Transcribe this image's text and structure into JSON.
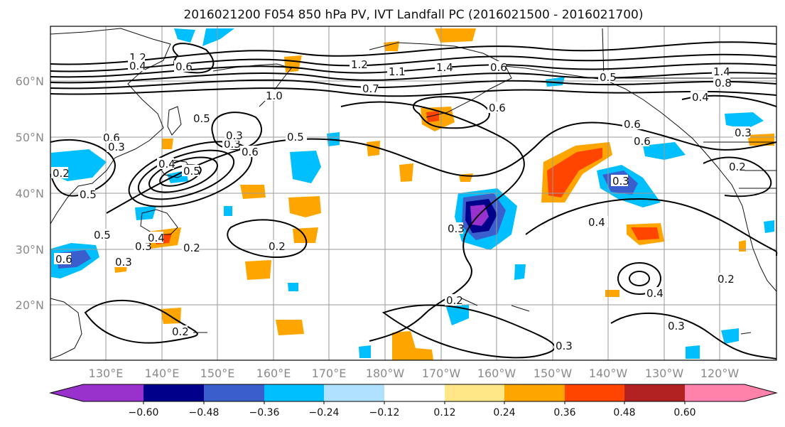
{
  "title": "2016021200 F054 850 hPa PV, IVT Landfall PC (2016021500 - 2016021700)",
  "map": {
    "lat_labels": [
      "60°N",
      "50°N",
      "40°N",
      "30°N",
      "20°N"
    ],
    "lon_labels": [
      "130°E",
      "140°E",
      "150°E",
      "160°E",
      "170°E",
      "180°W",
      "170°W",
      "160°W",
      "150°W",
      "140°W",
      "130°W",
      "120°W"
    ]
  },
  "colorbar": {
    "tick_labels": [
      "−0.60",
      "−0.48",
      "−0.36",
      "−0.24",
      "−0.12",
      "0.12",
      "0.24",
      "0.36",
      "0.48",
      "0.60"
    ],
    "colors": [
      "#9932cc",
      "#00008b",
      "#3a5fcd",
      "#00bfff",
      "#b0e2ff",
      "#ffffff",
      "#ffe787",
      "#ffa500",
      "#ff4500",
      "#b22222",
      "#ff82ab"
    ]
  },
  "contour_labels": [
    "1.2",
    "0.6",
    "1.4",
    "0.6",
    "1.2",
    "1.1",
    "0.7",
    "1.0",
    "0.5",
    "0.5",
    "0.6",
    "0.4",
    "0.5",
    "0.3",
    "0.6",
    "0.5",
    "0.2",
    "0.5",
    "0.6",
    "0.3",
    "0.3",
    "0.4",
    "0.6",
    "0.5",
    "0.6",
    "0.4",
    "0.2",
    "0.3",
    "0.2",
    "0.2",
    "0.3",
    "0.4",
    "0.3",
    "0.2",
    "0.3",
    "0.2",
    "0.3",
    "1.4",
    "0.8",
    "0.3",
    "0.3",
    "0.4",
    "0.6",
    "0.4",
    "0.2"
  ]
}
